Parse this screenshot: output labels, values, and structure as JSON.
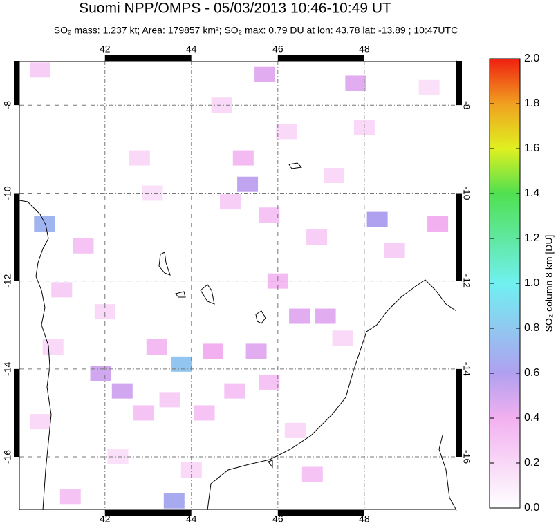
{
  "header": {
    "title": "Suomi NPP/OMPS - 05/03/2013 10:46-10:49 UT",
    "subtitle": "SO₂ mass: 1.237 kt; Area: 179857 km²; SO₂ max: 0.79 DU at lon: 43.78 lat: -13.89 ; 10:47UTC"
  },
  "map": {
    "xlim": [
      40.02,
      50.13
    ],
    "ylim": [
      -17.21,
      -6.99
    ],
    "xticks": [
      42,
      44,
      46,
      48
    ],
    "yticks": [
      -8,
      -10,
      -12,
      -14,
      -16
    ],
    "grid": true,
    "tiles": [
      [
        40.5,
        -7.2,
        0.25
      ],
      [
        45.3,
        -9.8,
        0.55
      ],
      [
        48.3,
        -10.6,
        0.6
      ],
      [
        47.8,
        -7.5,
        0.45
      ],
      [
        45.7,
        -7.3,
        0.45
      ],
      [
        46.5,
        -12.8,
        0.45
      ],
      [
        47.1,
        -12.8,
        0.45
      ],
      [
        42.4,
        -14.5,
        0.5
      ],
      [
        41.9,
        -14.1,
        0.5
      ],
      [
        40.6,
        -10.7,
        0.7
      ],
      [
        45.5,
        -13.6,
        0.45
      ],
      [
        44.5,
        -13.6,
        0.4
      ],
      [
        46.0,
        -12.0,
        0.35
      ],
      [
        49.7,
        -10.7,
        0.4
      ],
      [
        43.2,
        -13.5,
        0.35
      ],
      [
        43.78,
        -13.89,
        0.79
      ],
      [
        43.6,
        -17.0,
        0.65
      ],
      [
        46.8,
        -16.4,
        0.3
      ],
      [
        44.3,
        -15.0,
        0.3
      ],
      [
        45.0,
        -14.5,
        0.3
      ],
      [
        44.7,
        -8.0,
        0.2
      ],
      [
        45.2,
        -9.2,
        0.35
      ],
      [
        46.2,
        -8.6,
        0.2
      ],
      [
        47.3,
        -9.6,
        0.2
      ],
      [
        46.9,
        -11.0,
        0.25
      ],
      [
        45.8,
        -10.5,
        0.3
      ],
      [
        44.9,
        -10.2,
        0.25
      ],
      [
        41.5,
        -11.2,
        0.3
      ],
      [
        41.0,
        -12.2,
        0.25
      ],
      [
        42.9,
        -15.0,
        0.3
      ],
      [
        43.5,
        -14.7,
        0.25
      ],
      [
        45.8,
        -14.3,
        0.3
      ],
      [
        44.0,
        -16.3,
        0.2
      ],
      [
        42.3,
        -16.0,
        0.15
      ],
      [
        41.2,
        -16.9,
        0.3
      ],
      [
        40.5,
        -15.2,
        0.2
      ],
      [
        48.7,
        -11.3,
        0.25
      ],
      [
        49.5,
        -7.6,
        0.15
      ],
      [
        42.8,
        -9.2,
        0.2
      ],
      [
        43.1,
        -10.0,
        0.15
      ],
      [
        47.5,
        -13.3,
        0.2
      ],
      [
        48.0,
        -8.5,
        0.2
      ],
      [
        40.8,
        -13.5,
        0.2
      ],
      [
        42.0,
        -12.7,
        0.2
      ],
      [
        46.4,
        -15.4,
        0.2
      ]
    ],
    "coast_label": null
  },
  "colorbar": {
    "label": "SO₂ column 8 km [DU]",
    "lim": [
      0,
      2
    ],
    "ticks": [
      {
        "value": 0,
        "label": "0.0"
      },
      0.2,
      0.4,
      0.6,
      0.8,
      {
        "value": 1,
        "label": "1.0"
      },
      1.2,
      1.4,
      1.6,
      1.8,
      {
        "value": 2,
        "label": "2.0"
      }
    ],
    "stops": [
      [
        0,
        "#ffffff"
      ],
      [
        0.4,
        "#f2b0f0"
      ],
      [
        0.6,
        "#b0a0f0"
      ],
      [
        1.0,
        "#70f0f0"
      ],
      [
        1.4,
        "#50e050"
      ],
      [
        1.6,
        "#e0f020"
      ],
      [
        1.8,
        "#f0a020"
      ],
      [
        2,
        "#f02010"
      ]
    ]
  }
}
